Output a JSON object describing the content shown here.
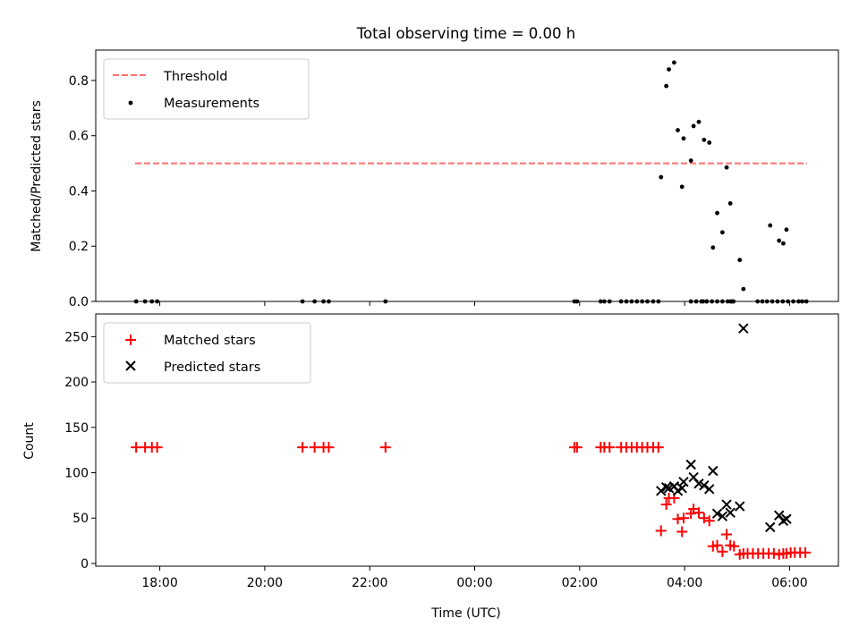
{
  "chart_data": [
    {
      "type": "scatter",
      "title": "Total observing time = 0.00 h",
      "xlabel": "",
      "ylabel": "Matched/Predicted stars",
      "xlim_hours": [
        16.78,
        30.93
      ],
      "ylim": [
        0,
        0.91
      ],
      "yticks": [
        0.0,
        0.2,
        0.4,
        0.6,
        0.8
      ],
      "ytick_labels": [
        "0.0",
        "0.2",
        "0.4",
        "0.6",
        "0.8"
      ],
      "legend_position": "upper-left",
      "grid": false,
      "threshold": {
        "name": "Threshold",
        "value": 0.5,
        "x_range_hours": [
          17.53,
          30.33
        ],
        "color": "#ff7070"
      },
      "series": [
        {
          "name": "Measurements",
          "marker": "dot",
          "color": "#000000",
          "points": [
            [
              17.55,
              0.0
            ],
            [
              17.72,
              0.0
            ],
            [
              17.85,
              0.0
            ],
            [
              17.95,
              0.0
            ],
            [
              20.72,
              0.0
            ],
            [
              20.95,
              0.0
            ],
            [
              21.12,
              0.0
            ],
            [
              21.22,
              0.0
            ],
            [
              22.3,
              0.0
            ],
            [
              28.35,
              0.0
            ],
            [
              28.42,
              0.0
            ],
            [
              28.88,
              0.0
            ],
            [
              28.93,
              0.0
            ],
            [
              29.39,
              0.0
            ],
            [
              29.48,
              0.0
            ],
            [
              29.57,
              0.0
            ],
            [
              29.67,
              0.0
            ],
            [
              29.77,
              0.0
            ],
            [
              29.87,
              0.0
            ],
            [
              29.97,
              0.0
            ],
            [
              30.07,
              0.0
            ],
            [
              30.17,
              0.0
            ],
            [
              30.24,
              0.0
            ],
            [
              30.32,
              0.0
            ],
            [
              28.12,
              0.0
            ],
            [
              28.22,
              0.0
            ],
            [
              28.32,
              0.0
            ],
            [
              28.42,
              0.0
            ],
            [
              28.52,
              0.0
            ],
            [
              28.62,
              0.0
            ],
            [
              28.72,
              0.0
            ],
            [
              28.82,
              0.0
            ],
            [
              28.9,
              0.0
            ],
            [
              25.9,
              0.0
            ],
            [
              25.95,
              0.0
            ],
            [
              26.4,
              0.0
            ],
            [
              26.47,
              0.0
            ],
            [
              26.57,
              0.0
            ],
            [
              26.79,
              0.0
            ],
            [
              26.89,
              0.0
            ],
            [
              26.99,
              0.0
            ],
            [
              27.09,
              0.0
            ],
            [
              27.19,
              0.0
            ],
            [
              27.29,
              0.0
            ],
            [
              27.4,
              0.0
            ],
            [
              27.5,
              0.0
            ],
            [
              27.55,
              0.45
            ],
            [
              27.65,
              0.78
            ],
            [
              27.7,
              0.84
            ],
            [
              27.8,
              0.865
            ],
            [
              27.87,
              0.62
            ],
            [
              27.95,
              0.415
            ],
            [
              27.98,
              0.59
            ],
            [
              28.12,
              0.51
            ],
            [
              28.17,
              0.635
            ],
            [
              28.27,
              0.65
            ],
            [
              28.37,
              0.585
            ],
            [
              28.47,
              0.575
            ],
            [
              28.54,
              0.195
            ],
            [
              28.62,
              0.32
            ],
            [
              28.72,
              0.25
            ],
            [
              28.8,
              0.485
            ],
            [
              28.87,
              0.355
            ],
            [
              29.05,
              0.15
            ],
            [
              29.12,
              0.045
            ],
            [
              29.63,
              0.275
            ],
            [
              29.8,
              0.22
            ],
            [
              29.88,
              0.21
            ],
            [
              29.94,
              0.26
            ]
          ]
        }
      ]
    },
    {
      "type": "scatter",
      "title": "",
      "xlabel": "Time (UTC)",
      "ylabel": "Count",
      "xlim_hours": [
        16.78,
        30.93
      ],
      "ylim": [
        -3,
        275
      ],
      "yticks": [
        0,
        50,
        100,
        150,
        200,
        250
      ],
      "ytick_labels": [
        "0",
        "50",
        "100",
        "150",
        "200",
        "250"
      ],
      "xticks_hours": [
        18,
        20,
        22,
        24,
        26,
        28,
        30
      ],
      "xtick_labels": [
        "18:00",
        "20:00",
        "22:00",
        "00:00",
        "02:00",
        "04:00",
        "06:00"
      ],
      "legend_position": "upper-left",
      "grid": false,
      "series": [
        {
          "name": "Matched stars",
          "marker": "plus",
          "color": "#ff0000",
          "points": [
            [
              17.55,
              128
            ],
            [
              17.72,
              128
            ],
            [
              17.85,
              128
            ],
            [
              17.95,
              128
            ],
            [
              20.72,
              128
            ],
            [
              20.95,
              128
            ],
            [
              21.12,
              128
            ],
            [
              21.22,
              128
            ],
            [
              22.3,
              128
            ],
            [
              25.9,
              128
            ],
            [
              25.95,
              128
            ],
            [
              26.4,
              128
            ],
            [
              26.47,
              128
            ],
            [
              26.57,
              128
            ],
            [
              26.79,
              128
            ],
            [
              26.89,
              128
            ],
            [
              26.99,
              128
            ],
            [
              27.09,
              128
            ],
            [
              27.19,
              128
            ],
            [
              27.29,
              128
            ],
            [
              27.4,
              128
            ],
            [
              27.5,
              128
            ],
            [
              27.55,
              36
            ],
            [
              27.65,
              65
            ],
            [
              27.7,
              72
            ],
            [
              27.8,
              72
            ],
            [
              27.87,
              49
            ],
            [
              27.95,
              35
            ],
            [
              27.98,
              50
            ],
            [
              28.12,
              55
            ],
            [
              28.17,
              60
            ],
            [
              28.27,
              56
            ],
            [
              28.37,
              50
            ],
            [
              28.47,
              47
            ],
            [
              28.54,
              19
            ],
            [
              28.62,
              20
            ],
            [
              28.72,
              13
            ],
            [
              28.8,
              32
            ],
            [
              28.87,
              20
            ],
            [
              28.94,
              19
            ],
            [
              29.05,
              10
            ],
            [
              29.12,
              11
            ],
            [
              29.2,
              11
            ],
            [
              29.3,
              11
            ],
            [
              29.4,
              11
            ],
            [
              29.5,
              11
            ],
            [
              29.6,
              11
            ],
            [
              29.7,
              11
            ],
            [
              29.8,
              10
            ],
            [
              29.88,
              11
            ],
            [
              29.94,
              11
            ],
            [
              30.02,
              12
            ],
            [
              30.1,
              12
            ],
            [
              30.2,
              12
            ],
            [
              30.3,
              12
            ]
          ]
        },
        {
          "name": "Predicted stars",
          "marker": "x",
          "color": "#000000",
          "points": [
            [
              27.55,
              80
            ],
            [
              27.65,
              84
            ],
            [
              27.7,
              83
            ],
            [
              27.8,
              85
            ],
            [
              27.87,
              80
            ],
            [
              27.95,
              83
            ],
            [
              27.98,
              90
            ],
            [
              28.12,
              109
            ],
            [
              28.17,
              95
            ],
            [
              28.27,
              88
            ],
            [
              28.37,
              86
            ],
            [
              28.47,
              82
            ],
            [
              28.54,
              102
            ],
            [
              28.62,
              55
            ],
            [
              28.72,
              52
            ],
            [
              28.8,
              65
            ],
            [
              28.87,
              56
            ],
            [
              29.05,
              63
            ],
            [
              29.12,
              259
            ],
            [
              29.63,
              40
            ],
            [
              29.8,
              53
            ],
            [
              29.88,
              47
            ],
            [
              29.94,
              49
            ]
          ]
        }
      ]
    }
  ]
}
